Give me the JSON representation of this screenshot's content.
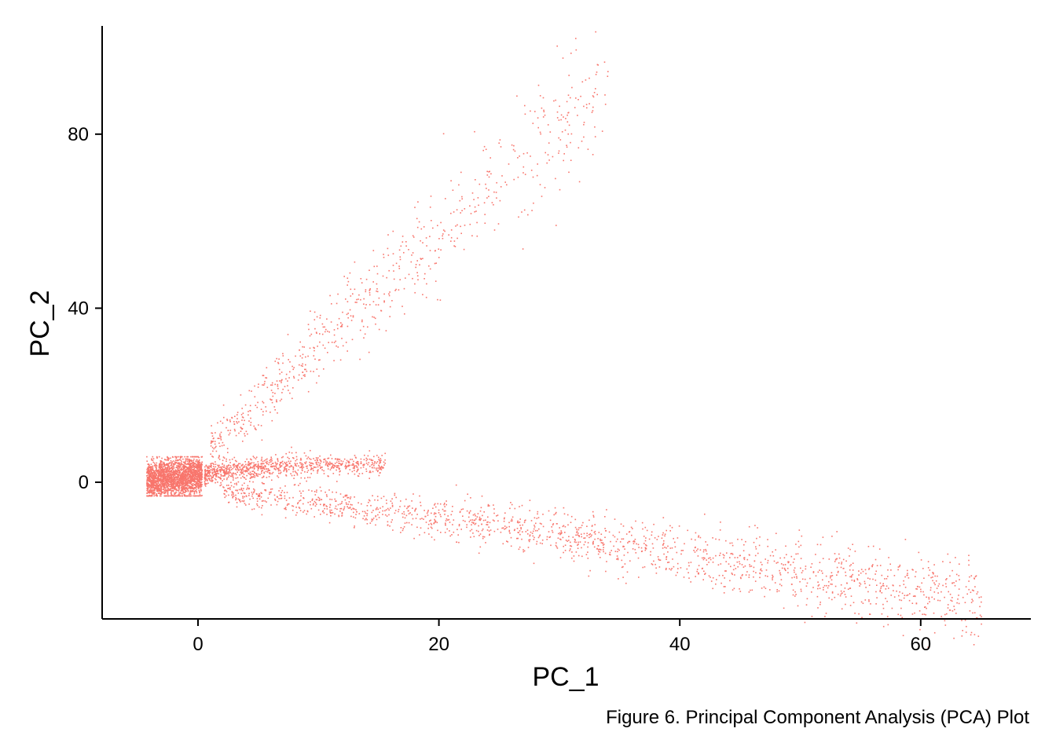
{
  "chart_data": {
    "type": "scatter",
    "xlabel": "PC_1",
    "ylabel": "PC_2",
    "caption": "Figure 6. Principal Component Analysis (PCA) Plot",
    "xlim": [
      -8,
      69
    ],
    "ylim": [
      -31,
      105
    ],
    "x_ticks": [
      0,
      20,
      40,
      60
    ],
    "y_ticks": [
      0,
      40,
      80
    ],
    "point_color": "#F8766D",
    "grid": false,
    "legend": "none",
    "clusters": [
      {
        "description_hidden": true,
        "x_range": [
          -4.5,
          0.5
        ],
        "y_center": 1,
        "y_spread": 4
      },
      {
        "x_range": [
          0,
          16
        ],
        "trend": "rising",
        "y_start": 1,
        "y_end": 4
      },
      {
        "x_range": [
          1,
          35
        ],
        "trend": "rising",
        "y_start": 8,
        "y_end": 95
      },
      {
        "x_range": [
          2,
          66
        ],
        "trend": "falling",
        "y_start": -2,
        "y_end": -25
      }
    ]
  }
}
